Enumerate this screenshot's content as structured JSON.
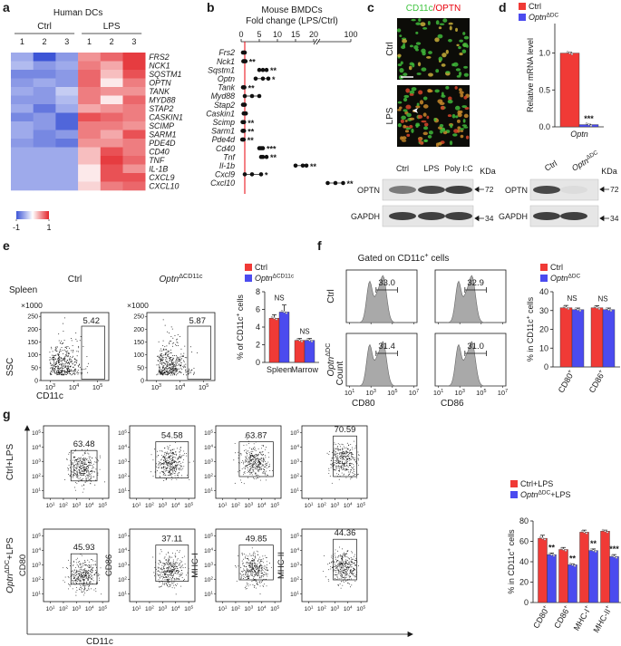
{
  "panel_labels": [
    "a",
    "b",
    "c",
    "d",
    "e",
    "f",
    "g"
  ],
  "a": {
    "title": "Human DCs",
    "groups": [
      "Ctrl",
      "LPS"
    ],
    "columns": [
      "1",
      "2",
      "3",
      "1",
      "2",
      "3"
    ],
    "rows": [
      "FRS2",
      "NCK1",
      "SQSTM1",
      "OPTN",
      "TANK",
      "MYD88",
      "STAP2",
      "CASKIN1",
      "SCIMP",
      "SARM1",
      "PDE4D",
      "CD40",
      "TNF",
      "IL-1B",
      "CXCL9",
      "CXCL10"
    ],
    "row_colors": [
      "#1a1a1a",
      "#1a1a1a",
      "#1a1a1a",
      "#e8000b",
      "#1a1a1a",
      "#1a1a1a",
      "#1a1a1a",
      "#1a1a1a",
      "#1a1a1a",
      "#1a1a1a",
      "#1a1a1a",
      "#1a1a1a",
      "#1a1a1a",
      "#1a1a1a",
      "#1a1a1a",
      "#1a1a1a"
    ],
    "values": [
      [
        -0.5,
        -1.0,
        -0.6,
        0.5,
        0.7,
        0.9
      ],
      [
        -0.4,
        -0.6,
        -0.5,
        0.6,
        0.4,
        0.9
      ],
      [
        -0.7,
        -0.7,
        -0.6,
        0.7,
        0.3,
        0.8
      ],
      [
        -0.6,
        -0.5,
        -0.6,
        0.7,
        0.1,
        0.6
      ],
      [
        -0.5,
        -0.6,
        -0.3,
        0.6,
        0.5,
        0.5
      ],
      [
        -0.6,
        -0.6,
        -0.4,
        0.6,
        0.1,
        0.7
      ],
      [
        -0.5,
        -0.8,
        -0.5,
        0.4,
        0.5,
        0.6
      ],
      [
        -0.7,
        -0.6,
        -0.9,
        0.8,
        0.7,
        0.6
      ],
      [
        -0.5,
        -0.6,
        -0.9,
        0.6,
        0.6,
        0.5
      ],
      [
        -0.5,
        -0.7,
        -0.6,
        0.6,
        0.4,
        0.8
      ],
      [
        -0.6,
        -0.7,
        -0.8,
        0.5,
        0.5,
        0.6
      ],
      [
        -0.5,
        -0.5,
        -0.5,
        0.3,
        0.8,
        0.6
      ],
      [
        -0.5,
        -0.5,
        -0.5,
        0.3,
        0.9,
        0.7
      ],
      [
        -0.5,
        -0.5,
        -0.5,
        0.1,
        0.8,
        0.5
      ],
      [
        -0.5,
        -0.5,
        -0.5,
        0.1,
        0.8,
        0.8
      ],
      [
        -0.5,
        -0.5,
        -0.5,
        0.2,
        0.6,
        0.7
      ]
    ],
    "colorbar": {
      "clim": [
        -1,
        1
      ],
      "ticks": [
        -1,
        1
      ],
      "low": "#3d55d6",
      "mid": "#ffffff",
      "high": "#e3262b"
    }
  },
  "b": {
    "title": "Mouse BMDCs",
    "subtitle": "Fold change (LPS/Ctrl)",
    "xlim": [
      0,
      100
    ],
    "axis_break": 20,
    "xticks": [
      0,
      5,
      10,
      15,
      20,
      100
    ],
    "reference": 1,
    "reference_color": "#e8000b",
    "genes": [
      "Frs2",
      "Nck1",
      "Sqstm1",
      "Optn",
      "Tank",
      "Myd88",
      "Stap2",
      "Caskin1",
      "Scimp",
      "Sarm1",
      "Pde4d",
      "Cd40",
      "Tnf",
      "Il-1b",
      "Cxcl9",
      "Cxcl10"
    ],
    "gene_colors": [
      "#1a1a1a",
      "#1a1a1a",
      "#1a1a1a",
      "#e8000b",
      "#1a1a1a",
      "#1a1a1a",
      "#1a1a1a",
      "#1a1a1a",
      "#1a1a1a",
      "#1a1a1a",
      "#1a1a1a",
      "#1a1a1a",
      "#1a1a1a",
      "#1a1a1a",
      "#1a1a1a",
      "#1a1a1a"
    ],
    "points": [
      [
        0.5,
        0.8,
        1.0
      ],
      [
        0.6,
        0.9,
        1.2
      ],
      [
        5,
        6,
        7
      ],
      [
        4,
        6,
        7.5
      ],
      [
        0.5,
        0.7,
        0.9
      ],
      [
        1,
        3,
        5
      ],
      [
        0.5,
        0.8,
        1.0
      ],
      [
        0.7,
        1,
        1.3
      ],
      [
        0.4,
        0.6,
        0.8
      ],
      [
        0.4,
        0.6,
        0.8
      ],
      [
        0.3,
        0.5,
        0.7
      ],
      [
        5,
        5.5,
        6
      ],
      [
        5.5,
        6,
        7
      ],
      [
        15,
        17,
        18
      ],
      [
        1,
        3,
        5.5
      ],
      [
        40,
        60,
        80
      ]
    ],
    "sig": [
      null,
      "**",
      "**",
      "*",
      "**",
      null,
      null,
      null,
      "**",
      "**",
      "**",
      "***",
      "**",
      "**",
      "*",
      "**"
    ]
  },
  "c": {
    "title": [
      {
        "text": "CD11c",
        "color": "#3ec43e"
      },
      {
        "text": "/OPTN",
        "color": "#e8000b"
      }
    ],
    "rows": [
      "Ctrl",
      "LPS"
    ],
    "blot": {
      "lanes": [
        "Ctrl",
        "LPS",
        "Poly I:C"
      ],
      "unit": "KDa",
      "proteins": [
        "OPTN",
        "GAPDH"
      ],
      "markers": [
        "72",
        "34"
      ]
    }
  },
  "d": {
    "chart": {
      "type": "bar",
      "categories": [
        [
          {
            "text": "Optn",
            "style": "italic"
          }
        ]
      ],
      "series": [
        {
          "name": "Ctrl",
          "color": "#f03a36",
          "values": [
            1.0
          ],
          "errors": [
            0.01
          ]
        },
        {
          "name": [
            {
              "text": "Optn",
              "style": "italic"
            },
            {
              "text": "ΔDC",
              "style": "sup"
            }
          ],
          "color": "#4b4bef",
          "values": [
            0.03
          ],
          "errors": [
            0.005
          ]
        }
      ],
      "ylim": [
        0,
        1.4
      ],
      "yticks": [
        {
          "value": 0,
          "label": "0.0"
        },
        {
          "value": 0.5,
          "label": "0.5"
        },
        {
          "value": 1,
          "label": "1.0"
        }
      ],
      "ylabel": "Relative mRNA level",
      "sig": [
        "***"
      ],
      "sig_position": "bar"
    },
    "blot": {
      "lanes": [
        "Ctrl",
        [
          {
            "text": "Optn",
            "style": "italic"
          },
          {
            "text": "ΔDC",
            "style": "sup"
          }
        ]
      ],
      "unit": "KDa",
      "proteins": [
        "OPTN",
        "GAPDH"
      ],
      "markers": [
        "72",
        "34"
      ]
    }
  },
  "e": {
    "tissue": "Spleen",
    "plots": [
      {
        "title": "Ctrl",
        "gate": "5.42"
      },
      {
        "title": [
          {
            "text": "Optn",
            "style": "italic"
          },
          {
            "text": "ΔCD11c",
            "style": "sup"
          }
        ],
        "gate": "5.87"
      }
    ],
    "y_unit": "×1000",
    "ylim": [
      0,
      265
    ],
    "yticks": [
      0,
      50,
      100,
      150,
      200,
      250
    ],
    "xlim": [
      400,
      300000
    ],
    "xticks": [
      {
        "value": 1000,
        "label": [
          "10",
          {
            "text": "3",
            "style": "sup"
          }
        ]
      },
      {
        "value": 10000,
        "label": [
          "10",
          {
            "text": "4",
            "style": "sup"
          }
        ]
      },
      {
        "value": 100000,
        "label": [
          "10",
          {
            "text": "5",
            "style": "sup"
          }
        ]
      }
    ],
    "ylabel": "SSC",
    "xlabel": "CD11c",
    "chart": {
      "type": "bar",
      "categories": [
        "Spleen",
        "Marrow"
      ],
      "series": [
        {
          "name": "Ctrl",
          "color": "#f03a36",
          "values": [
            5.0,
            2.5
          ],
          "errors": [
            0.4,
            0.2
          ]
        },
        {
          "name": [
            {
              "text": "Optn",
              "style": "italic"
            },
            {
              "text": "ΔCD11c",
              "style": "sup"
            }
          ],
          "color": "#4b4bef",
          "values": [
            5.7,
            2.5
          ],
          "errors": [
            0.8,
            0.2
          ]
        }
      ],
      "ylim": [
        0,
        8
      ],
      "yticks": [
        0,
        2,
        4,
        6,
        8
      ],
      "ylabel": [
        "% of CD11c",
        {
          "text": "+",
          "style": "sup"
        },
        " cells"
      ],
      "sig": [
        "NS",
        "NS"
      ],
      "sig_position": "group"
    }
  },
  "f": {
    "title": [
      "Gated on CD11c",
      {
        "text": "+",
        "style": "sup"
      },
      " cells"
    ],
    "rows": [
      "Ctrl",
      [
        {
          "text": "Optn",
          "style": "italic"
        },
        {
          "text": "ΔDC",
          "style": "sup"
        }
      ]
    ],
    "markers": [
      "CD80",
      "CD86"
    ],
    "gates": [
      [
        "33.0",
        "32.9"
      ],
      [
        "31.4",
        "31.0"
      ]
    ],
    "ylabel": "Count",
    "xlim": [
      5,
      20000000
    ],
    "xticks": [
      {
        "value": 10,
        "label": [
          "10",
          {
            "text": "1",
            "style": "sup"
          }
        ]
      },
      {
        "value": 1000,
        "label": [
          "10",
          {
            "text": "3",
            "style": "sup"
          }
        ]
      },
      {
        "value": 100000,
        "label": [
          "10",
          {
            "text": "5",
            "style": "sup"
          }
        ]
      },
      {
        "value": 10000000,
        "label": [
          "10",
          {
            "text": "7",
            "style": "sup"
          }
        ]
      }
    ],
    "chart": {
      "type": "bar",
      "categories": [
        [
          "CD80",
          {
            "text": "+",
            "style": "sup"
          }
        ],
        [
          "CD86",
          {
            "text": "+",
            "style": "sup"
          }
        ]
      ],
      "series": [
        {
          "name": "Ctrl",
          "color": "#f03a36",
          "values": [
            31.5,
            31.5
          ],
          "errors": [
            1.2,
            1.0
          ]
        },
        {
          "name": [
            {
              "text": "Optn",
              "style": "italic"
            },
            {
              "text": "ΔDC",
              "style": "sup"
            }
          ],
          "color": "#4b4bef",
          "values": [
            30.5,
            30.5
          ],
          "errors": [
            0.8,
            0.8
          ]
        }
      ],
      "ylim": [
        0,
        40
      ],
      "yticks": [
        0,
        10,
        20,
        30,
        40
      ],
      "ylabel": [
        "% in CD11c",
        {
          "text": "+",
          "style": "sup"
        },
        " cells"
      ],
      "sig": [
        "NS",
        "NS"
      ],
      "sig_position": "group"
    }
  },
  "g": {
    "rows": [
      "Ctrl+LPS",
      [
        {
          "text": "Optn",
          "style": "italic"
        },
        {
          "text": "ΔDC",
          "style": "sup"
        },
        "+LPS"
      ]
    ],
    "markers": [
      "CD80",
      "CD86",
      "MHC-I",
      "MHC-II"
    ],
    "gates": [
      [
        "63.48",
        "54.58",
        "63.87",
        "70.59"
      ],
      [
        "45.93",
        "37.11",
        "49.85",
        "44.36"
      ]
    ],
    "xlabel": "CD11c",
    "lim": [
      3,
      300000
    ],
    "ticks": [
      {
        "value": 10,
        "label": [
          "10",
          {
            "text": "1",
            "style": "sup"
          }
        ]
      },
      {
        "value": 100,
        "label": [
          "10",
          {
            "text": "2",
            "style": "sup"
          }
        ]
      },
      {
        "value": 1000,
        "label": [
          "10",
          {
            "text": "3",
            "style": "sup"
          }
        ]
      },
      {
        "value": 10000,
        "label": [
          "10",
          {
            "text": "4",
            "style": "sup"
          }
        ]
      },
      {
        "value": 100000,
        "label": [
          "10",
          {
            "text": "5",
            "style": "sup"
          }
        ]
      }
    ],
    "chart": {
      "type": "bar",
      "categories": [
        [
          "CD80",
          {
            "text": "+",
            "style": "sup"
          }
        ],
        [
          "CD86",
          {
            "text": "+",
            "style": "sup"
          }
        ],
        [
          "MHC-I",
          {
            "text": "+",
            "style": "sup"
          }
        ],
        [
          "MHC-II",
          {
            "text": "+",
            "style": "sup"
          }
        ]
      ],
      "series": [
        {
          "name": "Ctrl+LPS",
          "color": "#f03a36",
          "values": [
            63,
            52,
            69,
            70
          ],
          "errors": [
            3,
            2,
            2,
            1
          ]
        },
        {
          "name": [
            {
              "text": "Optn",
              "style": "italic"
            },
            {
              "text": "ΔDC",
              "style": "sup"
            },
            "+LPS"
          ],
          "color": "#4b4bef",
          "values": [
            47,
            37,
            51,
            45
          ],
          "errors": [
            1.5,
            1,
            1.5,
            2
          ]
        }
      ],
      "ylim": [
        0,
        80
      ],
      "yticks": [
        0,
        20,
        40,
        60,
        80
      ],
      "ylabel": [
        "% in CD11c",
        {
          "text": "+",
          "style": "sup"
        },
        " cells"
      ],
      "sig": [
        "**",
        "**",
        "**",
        "***"
      ],
      "sig_position": "bar"
    }
  }
}
